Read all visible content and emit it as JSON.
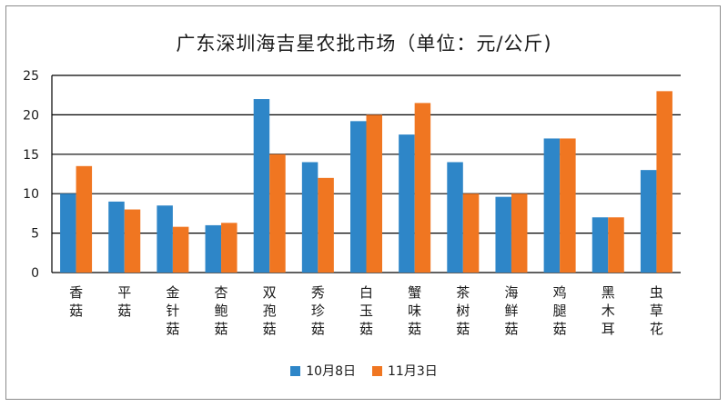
{
  "chart_data": {
    "type": "bar",
    "title": "广东深圳海吉星农批市场（单位：元/公斤)",
    "categories": [
      "香菇",
      "平菇",
      "金针菇",
      "杏鲍菇",
      "双孢菇",
      "秀珍菇",
      "白玉菇",
      "蟹味菇",
      "茶树菇",
      "海鲜菇",
      "鸡腿菇",
      "黑木耳",
      "虫草花"
    ],
    "series": [
      {
        "name": "10月8日",
        "color": "#2e86c8",
        "values": [
          10,
          9,
          8.5,
          6,
          22,
          14,
          19.2,
          17.5,
          14,
          9.6,
          17,
          7,
          13
        ]
      },
      {
        "name": "11月3日",
        "color": "#f07621",
        "values": [
          13.5,
          8,
          5.8,
          6.3,
          15,
          12,
          20,
          21.5,
          10,
          10,
          17,
          7,
          23
        ]
      }
    ],
    "yticks": [
      "0",
      "5",
      "10",
      "15",
      "20",
      "25"
    ],
    "ylim": [
      0,
      25
    ],
    "grid": true,
    "legend": "bottom"
  }
}
